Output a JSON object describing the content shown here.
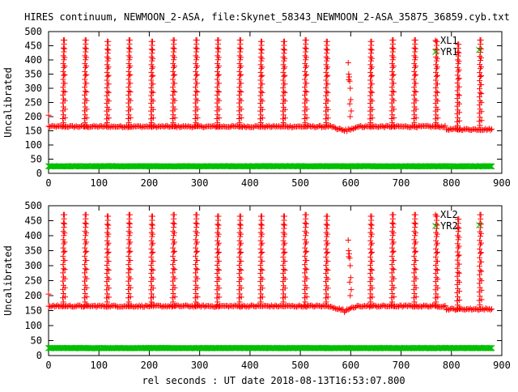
{
  "figure_title": "HIRES continuum, NEWMOON_2-ASA, file:Skynet_58343_NEWMOON_2-ASA_35875_36859.cyb.txt",
  "shared_xlabel": "rel seconds : UT date 2018-08-13T16:53:07.800",
  "colors": {
    "red": "#ff0000",
    "green": "#00c000",
    "axis": "#000000"
  },
  "chart_data": [
    {
      "type": "scatter",
      "title": "",
      "xlabel": "",
      "ylabel": "Uncalibrated",
      "xlim": [
        0,
        900
      ],
      "ylim": [
        0,
        500
      ],
      "xticks": [
        0,
        100,
        200,
        300,
        400,
        500,
        600,
        700,
        800,
        900
      ],
      "yticks": [
        0,
        50,
        100,
        150,
        200,
        250,
        300,
        350,
        400,
        450,
        500
      ],
      "legend_position": "top-right",
      "series": [
        {
          "name": "XL1",
          "color": "#ff0000",
          "marker": "plus",
          "baseline": 165,
          "x_range": [
            0,
            880
          ],
          "spikes": [
            {
              "x": 30,
              "peak": 470
            },
            {
              "x": 73,
              "peak": 470
            },
            {
              "x": 117,
              "peak": 465
            },
            {
              "x": 160,
              "peak": 470
            },
            {
              "x": 205,
              "peak": 465
            },
            {
              "x": 248,
              "peak": 470
            },
            {
              "x": 293,
              "peak": 470
            },
            {
              "x": 336,
              "peak": 470
            },
            {
              "x": 380,
              "peak": 470
            },
            {
              "x": 422,
              "peak": 465
            },
            {
              "x": 467,
              "peak": 465
            },
            {
              "x": 510,
              "peak": 470
            },
            {
              "x": 552,
              "peak": 465
            },
            {
              "x": 640,
              "peak": 465
            },
            {
              "x": 683,
              "peak": 470
            },
            {
              "x": 727,
              "peak": 470
            },
            {
              "x": 770,
              "peak": 465
            },
            {
              "x": 813,
              "peak": 455
            },
            {
              "x": 857,
              "peak": 470
            }
          ],
          "dip": {
            "x_range": [
              560,
              615
            ],
            "low": 145
          },
          "anomaly": {
            "x": 597,
            "peak": 390
          },
          "tail_baseline": {
            "x_range": [
              790,
              880
            ],
            "value": 155
          },
          "outliers": [
            {
              "x": 0,
              "y": 205
            }
          ]
        },
        {
          "name": "YR1",
          "color": "#00c000",
          "marker": "cross",
          "constant": 25,
          "x_range": [
            0,
            880
          ],
          "outliers": [
            {
              "x": 855,
              "y": 435
            }
          ]
        }
      ]
    },
    {
      "type": "scatter",
      "title": "",
      "xlabel": "rel seconds : UT date 2018-08-13T16:53:07.800",
      "ylabel": "Uncalibrated",
      "xlim": [
        0,
        900
      ],
      "ylim": [
        0,
        500
      ],
      "xticks": [
        0,
        100,
        200,
        300,
        400,
        500,
        600,
        700,
        800,
        900
      ],
      "yticks": [
        0,
        50,
        100,
        150,
        200,
        250,
        300,
        350,
        400,
        450,
        500
      ],
      "legend_position": "top-right",
      "series": [
        {
          "name": "XL2",
          "color": "#ff0000",
          "marker": "plus",
          "baseline": 165,
          "x_range": [
            0,
            880
          ],
          "spikes": [
            {
              "x": 30,
              "peak": 470
            },
            {
              "x": 73,
              "peak": 470
            },
            {
              "x": 117,
              "peak": 465
            },
            {
              "x": 160,
              "peak": 470
            },
            {
              "x": 205,
              "peak": 465
            },
            {
              "x": 248,
              "peak": 470
            },
            {
              "x": 293,
              "peak": 470
            },
            {
              "x": 336,
              "peak": 465
            },
            {
              "x": 380,
              "peak": 465
            },
            {
              "x": 422,
              "peak": 465
            },
            {
              "x": 467,
              "peak": 465
            },
            {
              "x": 510,
              "peak": 470
            },
            {
              "x": 552,
              "peak": 465
            },
            {
              "x": 640,
              "peak": 465
            },
            {
              "x": 683,
              "peak": 470
            },
            {
              "x": 727,
              "peak": 470
            },
            {
              "x": 770,
              "peak": 465
            },
            {
              "x": 813,
              "peak": 455
            },
            {
              "x": 857,
              "peak": 470
            }
          ],
          "dip": {
            "x_range": [
              560,
              615
            ],
            "low": 145
          },
          "anomaly": {
            "x": 597,
            "peak": 385
          },
          "tail_baseline": {
            "x_range": [
              790,
              880
            ],
            "value": 155
          },
          "outliers": [
            {
              "x": 0,
              "y": 205
            }
          ]
        },
        {
          "name": "YR2",
          "color": "#00c000",
          "marker": "cross",
          "constant": 25,
          "x_range": [
            0,
            880
          ],
          "outliers": [
            {
              "x": 855,
              "y": 435
            }
          ]
        }
      ]
    }
  ]
}
